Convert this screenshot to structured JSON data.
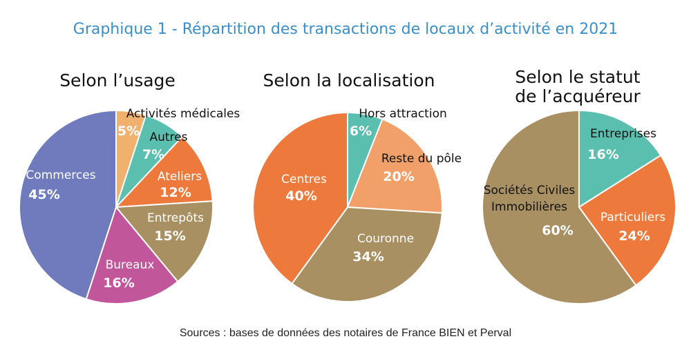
{
  "title": "Graphique 1 - Répartition des transactions de locaux d’activité en 2021",
  "source": "Sources : bases de données des notaires de France BIEN et Perval",
  "chart_data": [
    {
      "type": "pie",
      "title": [
        "Selon l’usage"
      ],
      "categories": [
        "Activités médicales",
        "Autres",
        "Ateliers",
        "Entrepôts",
        "Bureaux",
        "Commerces"
      ],
      "values": [
        5,
        7,
        12,
        15,
        16,
        45
      ],
      "value_labels": [
        "5%",
        "7%",
        "12%",
        "15%",
        "16%",
        "45%"
      ],
      "colors": [
        "#f0b06e",
        "#5bbfb0",
        "#ed7a3c",
        "#a89063",
        "#c2569a",
        "#6f7bbd"
      ]
    },
    {
      "type": "pie",
      "title": [
        "Selon la localisation"
      ],
      "categories": [
        "Hors attraction",
        "Reste du pôle",
        "Couronne",
        "Centres"
      ],
      "values": [
        6,
        20,
        34,
        40
      ],
      "value_labels": [
        "6%",
        "20%",
        "34%",
        "40%"
      ],
      "colors": [
        "#5bbfb0",
        "#f2a06a",
        "#a89063",
        "#ed7a3c"
      ]
    },
    {
      "type": "pie",
      "title": [
        "Selon le statut",
        "de l’acquéreur"
      ],
      "categories": [
        "Entreprises",
        "Particuliers",
        "Sociétés Civiles Immobilières"
      ],
      "values": [
        16,
        24,
        60
      ],
      "value_labels": [
        "16%",
        "24%",
        "60%"
      ],
      "colors": [
        "#5bbfb0",
        "#ed7a3c",
        "#a89063"
      ]
    }
  ]
}
